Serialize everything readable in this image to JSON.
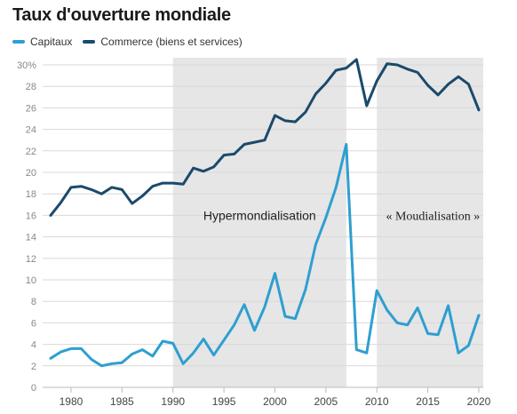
{
  "chart_data": {
    "type": "line",
    "title": "Taux d'ouverture mondiale",
    "xlabel": "",
    "ylabel": "",
    "xlim": [
      1978,
      2020
    ],
    "ylim": [
      0,
      30
    ],
    "y_ticks": [
      0,
      2,
      4,
      6,
      8,
      10,
      12,
      14,
      16,
      18,
      20,
      22,
      24,
      26,
      28,
      30
    ],
    "y_tick_labels": [
      "0",
      "2",
      "4",
      "6",
      "8",
      "10",
      "12",
      "14",
      "16",
      "18",
      "20",
      "22",
      "24",
      "26",
      "28",
      "30%"
    ],
    "x_ticks": [
      1980,
      1985,
      1990,
      1995,
      2000,
      2005,
      2010,
      2015,
      2020
    ],
    "x_tick_labels": [
      "1980",
      "1985",
      "1990",
      "1995",
      "2000",
      "2005",
      "2010",
      "2015",
      "2020"
    ],
    "grid": "horizontal",
    "legend_position": "top-left",
    "x": [
      1978,
      1979,
      1980,
      1981,
      1982,
      1983,
      1984,
      1985,
      1986,
      1987,
      1988,
      1989,
      1990,
      1991,
      1992,
      1993,
      1994,
      1995,
      1996,
      1997,
      1998,
      1999,
      2000,
      2001,
      2002,
      2003,
      2004,
      2005,
      2006,
      2007,
      2008,
      2009,
      2010,
      2011,
      2012,
      2013,
      2014,
      2015,
      2016,
      2017,
      2018,
      2019,
      2020
    ],
    "series": [
      {
        "name": "Capitaux",
        "color": "#2e9fd0",
        "values": [
          2.7,
          3.3,
          3.6,
          3.6,
          2.6,
          2.0,
          2.2,
          2.3,
          3.1,
          3.5,
          2.9,
          4.3,
          4.1,
          2.2,
          3.2,
          4.5,
          3.0,
          4.4,
          5.8,
          7.7,
          5.3,
          7.5,
          10.6,
          6.6,
          6.4,
          9.1,
          13.3,
          15.8,
          18.6,
          22.6,
          3.5,
          3.2,
          9.0,
          7.2,
          6.0,
          5.8,
          7.4,
          5.0,
          4.9,
          7.6,
          3.2,
          3.9,
          6.7
        ]
      },
      {
        "name": "Commerce (biens et services)",
        "color": "#1a4a6b",
        "values": [
          16.0,
          17.2,
          18.6,
          18.7,
          18.4,
          18.0,
          18.6,
          18.4,
          17.1,
          17.8,
          18.7,
          19.0,
          19.0,
          18.9,
          20.4,
          20.1,
          20.5,
          21.6,
          21.7,
          22.6,
          22.8,
          23.0,
          25.3,
          24.8,
          24.7,
          25.6,
          27.3,
          28.3,
          29.5,
          29.7,
          30.5,
          26.2,
          28.5,
          30.1,
          30.0,
          29.6,
          29.3,
          28.1,
          27.2,
          28.2,
          28.9,
          28.2,
          25.8
        ]
      }
    ],
    "shaded_periods": [
      {
        "from": 1990,
        "to": 2007
      },
      {
        "from": 2010,
        "to": 2020.7
      }
    ],
    "annotations": [
      {
        "text": "Hypermondialisation",
        "x": 1998.5,
        "y": 16
      },
      {
        "text": "« Moudialisation »",
        "x": 2015.5,
        "y": 16
      }
    ]
  }
}
